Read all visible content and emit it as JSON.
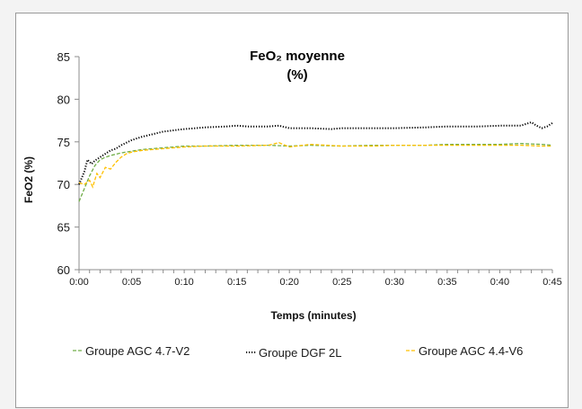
{
  "chart_data": {
    "type": "line",
    "title": "FeO₂ moyenne",
    "subtitle": "(%)",
    "xlabel": "Temps (minutes)",
    "ylabel": "FeO2 (%)",
    "xlim": [
      0,
      45
    ],
    "ylim": [
      60,
      85
    ],
    "x_ticks": [
      0,
      5,
      10,
      15,
      20,
      25,
      30,
      35,
      40,
      45
    ],
    "x_tick_labels": [
      "0:00",
      "0:05",
      "0:10",
      "0:15",
      "0:20",
      "0:25",
      "0:30",
      "0:35",
      "0:40",
      "0:45"
    ],
    "y_ticks": [
      60,
      65,
      70,
      75,
      80,
      85
    ],
    "y_tick_labels": [
      "60",
      "65",
      "70",
      "75",
      "80",
      "85"
    ],
    "grid": false,
    "legend_position": "bottom",
    "series": [
      {
        "name": "Groupe AGC 4.7-V2",
        "color": "#70ad47",
        "dash": "dashed",
        "x": [
          0,
          0.5,
          1,
          1.5,
          2,
          2.5,
          3,
          4,
          5,
          6,
          8,
          10,
          12,
          15,
          18,
          20,
          22,
          25,
          28,
          30,
          33,
          35,
          38,
          40,
          42,
          44,
          45
        ],
        "y": [
          68.0,
          69.5,
          71.0,
          72.2,
          72.9,
          73.2,
          73.4,
          73.7,
          73.9,
          74.1,
          74.3,
          74.5,
          74.5,
          74.6,
          74.6,
          74.5,
          74.6,
          74.5,
          74.6,
          74.6,
          74.6,
          74.7,
          74.7,
          74.7,
          74.8,
          74.7,
          74.6
        ]
      },
      {
        "name": "Groupe DGF 2L",
        "color": "#000000",
        "dash": "dotted",
        "x": [
          0,
          0.5,
          0.8,
          1.2,
          1.5,
          2,
          2.5,
          3,
          3.5,
          4,
          5,
          6,
          7,
          8,
          10,
          12,
          14,
          15,
          16,
          18,
          19,
          20,
          22,
          24,
          25,
          28,
          30,
          33,
          35,
          38,
          40,
          42,
          43,
          43.5,
          44,
          44.5,
          45
        ],
        "y": [
          70.0,
          71.5,
          72.9,
          72.4,
          72.8,
          73.2,
          73.6,
          74.0,
          74.2,
          74.6,
          75.2,
          75.6,
          75.9,
          76.2,
          76.5,
          76.7,
          76.8,
          76.9,
          76.8,
          76.8,
          76.9,
          76.6,
          76.6,
          76.5,
          76.6,
          76.6,
          76.6,
          76.7,
          76.8,
          76.8,
          76.9,
          76.9,
          77.3,
          76.9,
          76.6,
          76.8,
          77.2
        ]
      },
      {
        "name": "Groupe AGC 4.4-V6",
        "color": "#ffc000",
        "dash": "dashed",
        "x": [
          0,
          0.5,
          1,
          1.3,
          1.7,
          2,
          2.5,
          3,
          3.5,
          4,
          4.5,
          5,
          6,
          8,
          10,
          12,
          15,
          18,
          19,
          20,
          22,
          25,
          28,
          30,
          33,
          35,
          38,
          40,
          42,
          44,
          45
        ],
        "y": [
          70.2,
          70.0,
          70.5,
          69.7,
          71.3,
          70.8,
          72.0,
          71.8,
          72.6,
          73.2,
          73.6,
          73.8,
          74.0,
          74.2,
          74.4,
          74.5,
          74.5,
          74.6,
          74.9,
          74.4,
          74.7,
          74.5,
          74.5,
          74.6,
          74.6,
          74.6,
          74.6,
          74.6,
          74.6,
          74.5,
          74.5
        ]
      }
    ]
  }
}
